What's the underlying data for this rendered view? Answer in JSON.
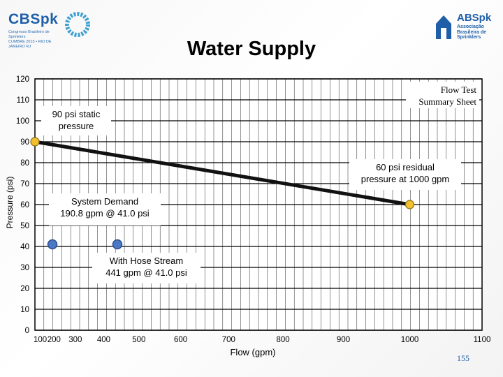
{
  "slide": {
    "title": "Water Supply",
    "page_number": "155",
    "logo_left": {
      "name": "CBSpk",
      "subtitle": "Congresso Brasileiro de Sprinklers",
      "tagline": "CUMBRE 2015 • RIO DE JANEIRO RJ"
    },
    "logo_right": {
      "name": "ABSpk",
      "subtitle": "Associação Brasileira de Sprinklers"
    }
  },
  "chart_data": {
    "type": "line",
    "title": "Water Supply",
    "xlabel": "Flow (gpm)",
    "ylabel": "Pressure (psi)",
    "y_ticks": [
      0,
      10,
      20,
      30,
      40,
      50,
      60,
      70,
      80,
      90,
      100,
      110,
      120
    ],
    "x_tick_labels": [
      "100",
      "200",
      "300",
      "400",
      "500",
      "600",
      "700",
      "800",
      "900",
      "1000",
      "1100"
    ],
    "ylim": [
      0,
      120
    ],
    "grid": true,
    "x_axis_scale": "N^1.85 hydraulic graph scale",
    "series": [
      {
        "name": "",
        "points": [
          {
            "x": 0,
            "y": 90
          },
          {
            "x": 1000,
            "y": 60
          }
        ]
      }
    ],
    "markers": [
      {
        "x": 0,
        "y": 90,
        "color": "#f2c02e",
        "kind": "static"
      },
      {
        "x": 1000,
        "y": 60,
        "color": "#f2c02e",
        "kind": "residual"
      },
      {
        "x": 190.8,
        "y": 41.0,
        "color": "#4a78c4",
        "kind": "demand"
      },
      {
        "x": 441,
        "y": 41.0,
        "color": "#4a78c4",
        "kind": "hose"
      }
    ],
    "annotations": [
      {
        "text": "Flow Test Summary Sheet",
        "line1": "Flow Test",
        "line2": "Summary Sheet"
      },
      {
        "text": "90 psi static pressure",
        "line1": "90 psi static",
        "line2": "pressure"
      },
      {
        "text": "60 psi residual pressure at 1000 gpm",
        "line1": "60 psi residual",
        "line2": "pressure at 1000 gpm"
      },
      {
        "text": "System Demand 190.8 gpm @ 41.0 psi",
        "line1": "System Demand",
        "line2": "190.8 gpm @ 41.0 psi"
      },
      {
        "text": "With Hose Stream 441 gpm @ 41.0 psi",
        "line1": "With Hose Stream",
        "line2": "441 gpm @ 41.0 psi"
      }
    ],
    "colors": {
      "supply_line": "#111111",
      "grid": "#000000",
      "static_marker": "#f2c02e",
      "demand_marker": "#4a78c4"
    }
  }
}
